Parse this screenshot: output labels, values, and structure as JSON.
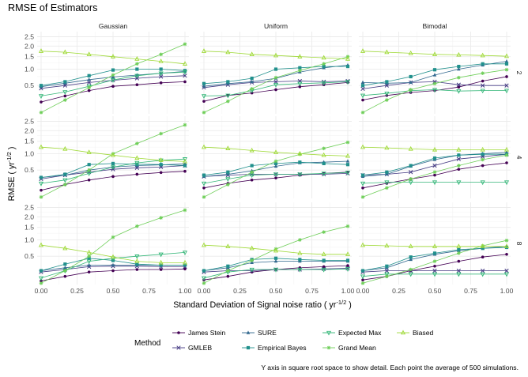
{
  "chart_data": {
    "type": "line",
    "title": "RMSE of Estimators",
    "ylabel": "RMSE ( yr",
    "ylabel_sup": "-1/2",
    "ylabel_end": " )",
    "xlabel": "Standard Deviation of Signal noise ratio ( yr",
    "xlabel_sup": "-1/2",
    "xlabel_end": " )",
    "caption": "Y axis in square root space to show detail. Each point the average of 500 simulations.",
    "y_scale": "sqrt",
    "grid": true,
    "legend_position": "bottom",
    "legend_title": "Method",
    "xlim": [
      0,
      1
    ],
    "ylim": [
      0.04,
      2.8
    ],
    "x_ticks": [
      0,
      0.25,
      0.5,
      0.75,
      1
    ],
    "x_tick_labels": [
      "0.00",
      "0.25",
      "0.50",
      "0.75",
      "1.00"
    ],
    "y_ticks": [
      0.5,
      1.0,
      1.5,
      2.0,
      2.5
    ],
    "y_tick_labels": [
      "0.5",
      "1.0",
      "1.5",
      "2.0",
      "2.5"
    ],
    "columns": [
      "Gaussian",
      "Uniform",
      "Bimodal"
    ],
    "rows": [
      "2",
      "4",
      "8"
    ],
    "x": [
      0,
      0.1667,
      0.3333,
      0.5,
      0.6667,
      0.8333,
      1.0
    ],
    "methods": [
      {
        "key": "js",
        "name": "James Stein",
        "color": "#440154",
        "shape": "circle"
      },
      {
        "key": "gmleb",
        "name": "GMLEB",
        "color": "#443a83",
        "shape": "x"
      },
      {
        "key": "sure",
        "name": "SURE",
        "color": "#31688e",
        "shape": "triangle-up"
      },
      {
        "key": "eb",
        "name": "Empirical Bayes",
        "color": "#21908c",
        "shape": "square"
      },
      {
        "key": "em",
        "name": "Expected Max",
        "color": "#35b779",
        "shape": "triangle-down"
      },
      {
        "key": "gm",
        "name": "Grand Mean",
        "color": "#6ece58",
        "shape": "star"
      },
      {
        "key": "biased",
        "name": "Biased",
        "color": "#a0da39",
        "shape": "triangle-up-open"
      }
    ],
    "panels": [
      {
        "col": "Gaussian",
        "row": "2",
        "series": {
          "js": [
            0.17,
            0.27,
            0.38,
            0.48,
            0.52,
            0.57,
            0.6
          ],
          "gmleb": [
            0.43,
            0.5,
            0.58,
            0.64,
            0.7,
            0.75,
            0.78
          ],
          "sure": [
            0.47,
            0.56,
            0.66,
            0.74,
            0.8,
            0.86,
            0.92
          ],
          "eb": [
            0.5,
            0.6,
            0.78,
            0.97,
            1.0,
            1.0,
            0.95
          ],
          "em": [
            0.27,
            0.35,
            0.48,
            0.65,
            0.78,
            0.86,
            0.9
          ],
          "gm": [
            0.05,
            0.2,
            0.45,
            0.8,
            1.2,
            1.6,
            2.1
          ],
          "biased": [
            1.75,
            1.7,
            1.6,
            1.5,
            1.4,
            1.3,
            1.2
          ]
        }
      },
      {
        "col": "Uniform",
        "row": "2",
        "series": {
          "js": [
            0.18,
            0.28,
            0.33,
            0.4,
            0.47,
            0.52,
            0.58
          ],
          "gmleb": [
            0.45,
            0.52,
            0.58,
            0.6,
            0.62,
            0.6,
            0.62
          ],
          "sure": [
            0.48,
            0.55,
            0.6,
            0.7,
            0.9,
            1.05,
            1.15
          ],
          "eb": [
            0.55,
            0.6,
            0.7,
            1.0,
            1.05,
            1.1,
            1.1
          ],
          "em": [
            0.27,
            0.28,
            0.38,
            0.52,
            0.55,
            0.57,
            0.6
          ],
          "gm": [
            0.05,
            0.18,
            0.42,
            0.72,
            0.95,
            1.2,
            1.5
          ],
          "biased": [
            1.75,
            1.7,
            1.6,
            1.55,
            1.5,
            1.45,
            1.4
          ]
        }
      },
      {
        "col": "Bimodal",
        "row": "2",
        "series": {
          "js": [
            0.2,
            0.28,
            0.34,
            0.38,
            0.46,
            0.62,
            0.75
          ],
          "gmleb": [
            0.42,
            0.5,
            0.58,
            0.6,
            0.52,
            0.5,
            0.5
          ],
          "sure": [
            0.58,
            0.56,
            0.58,
            0.8,
            1.0,
            1.15,
            1.3
          ],
          "eb": [
            0.5,
            0.6,
            0.75,
            0.98,
            1.1,
            1.2,
            1.2
          ],
          "em": [
            0.28,
            0.32,
            0.38,
            0.4,
            0.37,
            0.38,
            0.38
          ],
          "gm": [
            0.05,
            0.2,
            0.4,
            0.55,
            0.72,
            0.86,
            0.98
          ],
          "biased": [
            1.75,
            1.7,
            1.65,
            1.6,
            1.58,
            1.55,
            1.52
          ]
        }
      },
      {
        "col": "Gaussian",
        "row": "4",
        "series": {
          "js": [
            0.12,
            0.2,
            0.28,
            0.35,
            0.4,
            0.44,
            0.47
          ],
          "gmleb": [
            0.3,
            0.38,
            0.45,
            0.52,
            0.56,
            0.58,
            0.62
          ],
          "sure": [
            0.33,
            0.38,
            0.5,
            0.58,
            0.62,
            0.64,
            0.67
          ],
          "eb": [
            0.33,
            0.4,
            0.65,
            0.68,
            0.66,
            0.65,
            0.62
          ],
          "em": [
            0.22,
            0.28,
            0.42,
            0.58,
            0.7,
            0.78,
            0.82
          ],
          "gm": [
            0.05,
            0.2,
            0.5,
            1.0,
            1.4,
            1.85,
            2.3
          ],
          "biased": [
            1.25,
            1.18,
            1.05,
            0.95,
            0.85,
            0.78,
            0.74
          ]
        }
      },
      {
        "col": "Uniform",
        "row": "4",
        "series": {
          "js": [
            0.15,
            0.22,
            0.28,
            0.32,
            0.38,
            0.42,
            0.45
          ],
          "gmleb": [
            0.35,
            0.38,
            0.4,
            0.4,
            0.4,
            0.4,
            0.42
          ],
          "sure": [
            0.35,
            0.4,
            0.48,
            0.6,
            0.7,
            0.72,
            0.75
          ],
          "eb": [
            0.38,
            0.45,
            0.62,
            0.68,
            0.72,
            0.68,
            0.65
          ],
          "em": [
            0.22,
            0.3,
            0.38,
            0.4,
            0.4,
            0.42,
            0.44
          ],
          "gm": [
            0.05,
            0.2,
            0.45,
            0.75,
            0.98,
            1.2,
            1.45
          ],
          "biased": [
            1.25,
            1.2,
            1.12,
            1.05,
            1.0,
            0.95,
            0.92
          ]
        }
      },
      {
        "col": "Bimodal",
        "row": "4",
        "series": {
          "js": [
            0.15,
            0.22,
            0.3,
            0.38,
            0.52,
            0.62,
            0.7
          ],
          "gmleb": [
            0.38,
            0.4,
            0.45,
            0.62,
            0.82,
            0.9,
            0.98
          ],
          "sure": [
            0.35,
            0.4,
            0.6,
            0.8,
            0.95,
            1.0,
            1.05
          ],
          "eb": [
            0.38,
            0.45,
            0.62,
            0.85,
            0.95,
            0.98,
            0.98
          ],
          "em": [
            0.22,
            0.24,
            0.24,
            0.24,
            0.24,
            0.24,
            0.24
          ],
          "gm": [
            0.05,
            0.15,
            0.3,
            0.45,
            0.62,
            0.8,
            0.95
          ],
          "biased": [
            1.25,
            1.22,
            1.18,
            1.15,
            1.15,
            1.15,
            1.15
          ]
        }
      },
      {
        "col": "Gaussian",
        "row": "8",
        "series": {
          "js": [
            0.07,
            0.12,
            0.18,
            0.2,
            0.22,
            0.22,
            0.23
          ],
          "gmleb": [
            0.18,
            0.22,
            0.27,
            0.28,
            0.28,
            0.27,
            0.27
          ],
          "sure": [
            0.2,
            0.25,
            0.3,
            0.3,
            0.3,
            0.3,
            0.3
          ],
          "eb": [
            0.2,
            0.32,
            0.45,
            0.4,
            0.32,
            0.3,
            0.3
          ],
          "em": [
            0.1,
            0.2,
            0.38,
            0.45,
            0.5,
            0.55,
            0.6
          ],
          "gm": [
            0.05,
            0.2,
            0.5,
            1.1,
            1.55,
            1.95,
            2.35
          ],
          "biased": [
            0.82,
            0.72,
            0.6,
            0.48,
            0.38,
            0.35,
            0.35
          ]
        }
      },
      {
        "col": "Uniform",
        "row": "8",
        "series": {
          "js": [
            0.08,
            0.12,
            0.18,
            0.22,
            0.25,
            0.27,
            0.29
          ],
          "gmleb": [
            0.18,
            0.2,
            0.2,
            0.22,
            0.22,
            0.23,
            0.24
          ],
          "sure": [
            0.2,
            0.25,
            0.35,
            0.38,
            0.38,
            0.38,
            0.38
          ],
          "eb": [
            0.2,
            0.28,
            0.42,
            0.45,
            0.42,
            0.4,
            0.4
          ],
          "em": [
            0.1,
            0.18,
            0.22,
            0.22,
            0.22,
            0.22,
            0.23
          ],
          "gm": [
            0.05,
            0.2,
            0.4,
            0.7,
            1.0,
            1.3,
            1.55
          ],
          "biased": [
            0.82,
            0.78,
            0.72,
            0.65,
            0.58,
            0.55,
            0.55
          ]
        }
      },
      {
        "col": "Bimodal",
        "row": "8",
        "series": {
          "js": [
            0.08,
            0.12,
            0.2,
            0.28,
            0.38,
            0.48,
            0.55
          ],
          "gmleb": [
            0.18,
            0.2,
            0.2,
            0.2,
            0.2,
            0.2,
            0.2
          ],
          "sure": [
            0.2,
            0.25,
            0.42,
            0.55,
            0.65,
            0.72,
            0.78
          ],
          "eb": [
            0.2,
            0.28,
            0.48,
            0.58,
            0.68,
            0.72,
            0.75
          ],
          "em": [
            0.12,
            0.15,
            0.15,
            0.15,
            0.15,
            0.15,
            0.15
          ],
          "gm": [
            0.05,
            0.12,
            0.22,
            0.38,
            0.58,
            0.8,
            0.98
          ],
          "biased": [
            0.82,
            0.8,
            0.78,
            0.78,
            0.78,
            0.78,
            0.78
          ]
        }
      }
    ]
  }
}
